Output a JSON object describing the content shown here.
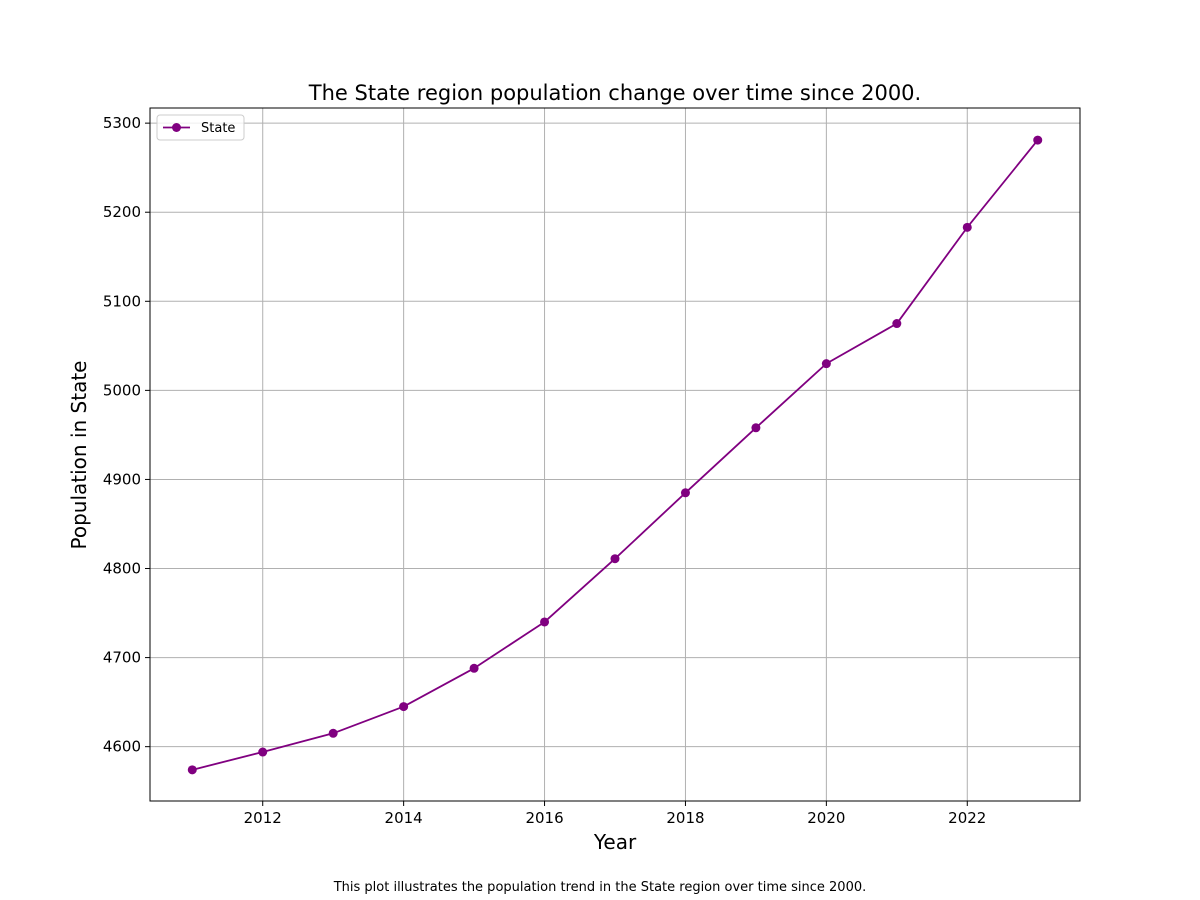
{
  "chart_data": {
    "type": "line",
    "title": "The State region population change over time since 2000.",
    "xlabel": "Year",
    "ylabel": "Population in State",
    "caption": "This plot illustrates the population trend in the State region over time since 2000.",
    "x": [
      2011,
      2012,
      2013,
      2014,
      2015,
      2016,
      2017,
      2018,
      2019,
      2020,
      2021,
      2022,
      2023
    ],
    "series": [
      {
        "name": "State",
        "color": "#800080",
        "marker": "circle",
        "values": [
          4574,
          4594,
          4615,
          4645,
          4688,
          4740,
          4811,
          4885,
          4958,
          5030,
          5075,
          5183,
          5281
        ]
      }
    ],
    "xlim": [
      2010.4,
      2023.6
    ],
    "ylim": [
      4539,
      5317
    ],
    "xticks": [
      2012,
      2014,
      2016,
      2018,
      2020,
      2022
    ],
    "xtick_labels": [
      "2012",
      "2014",
      "2016",
      "2018",
      "2020",
      "2022"
    ],
    "yticks": [
      4600,
      4700,
      4800,
      4900,
      5000,
      5100,
      5200,
      5300
    ],
    "ytick_labels": [
      "4600",
      "4700",
      "4800",
      "4900",
      "5000",
      "5100",
      "5200",
      "5300"
    ],
    "grid": true,
    "legend_position": "top-left"
  }
}
